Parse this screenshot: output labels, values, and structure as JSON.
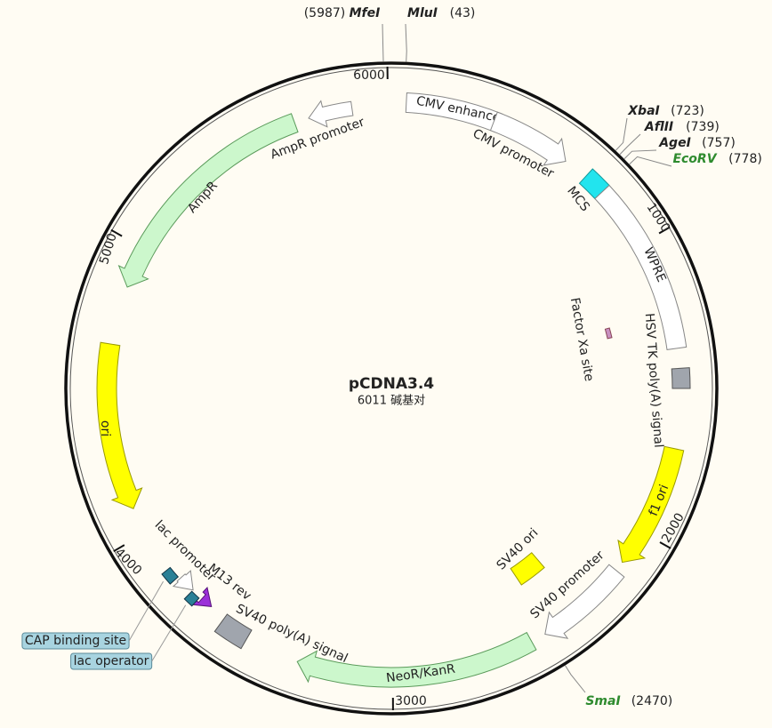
{
  "plasmid": {
    "name": "pCDNA3.4",
    "size": "6011 碱基对"
  },
  "sites": [
    {
      "name": "MfeI",
      "position": "(5987)"
    },
    {
      "name": "MluI",
      "position": "(43)"
    },
    {
      "name": "XbaI",
      "position": "(723)"
    },
    {
      "name": "AflII",
      "position": "(739)"
    },
    {
      "name": "AgeI",
      "position": "(757)"
    },
    {
      "name": "EcoRV",
      "position": "(778)"
    },
    {
      "name": "SmaI",
      "position": "(2470)"
    }
  ],
  "ticks": [
    "6000",
    "1000",
    "2000",
    "3000",
    "4000",
    "5000"
  ],
  "features": [
    "CMV enhancer",
    "CMV promoter",
    "MCS",
    "WPRE",
    "Factor Xa site",
    "HSV TK poly(A) signal",
    "f1 ori",
    "SV40 ori",
    "SV40 promoter",
    "NeoR/KanR",
    "SV40 poly(A) signal",
    "M13 rev",
    "lac operator",
    "lac promoter",
    "CAP binding site",
    "ori",
    "AmpR",
    "AmpR promoter"
  ]
}
